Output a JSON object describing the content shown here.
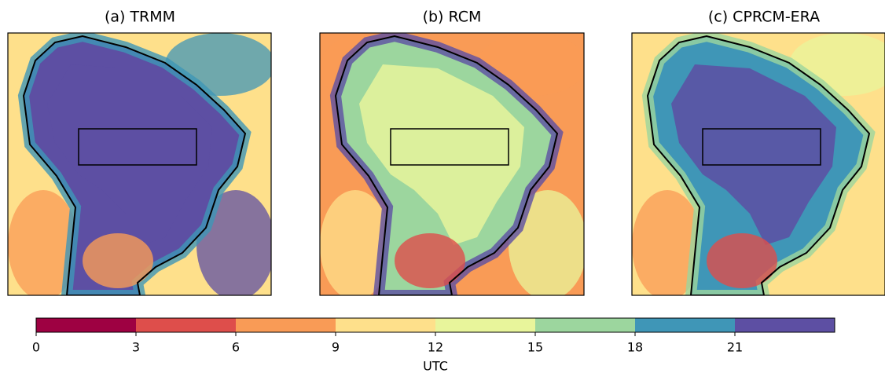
{
  "panels": [
    {
      "title": "(a) TRMM"
    },
    {
      "title": "(b) RCM"
    },
    {
      "title": "(c) CPRCM-ERA"
    }
  ],
  "colorbar": {
    "label": "UTC",
    "bounds": [
      0,
      3,
      6,
      9,
      12,
      15,
      18,
      21,
      24
    ],
    "ticks": [
      0,
      3,
      6,
      9,
      12,
      15,
      18,
      21
    ],
    "colors": [
      "#9e0142",
      "#de4e4b",
      "#f99b56",
      "#fee08b",
      "#e8f59b",
      "#9cd69e",
      "#3f96b7",
      "#5d4fa3"
    ]
  }
}
